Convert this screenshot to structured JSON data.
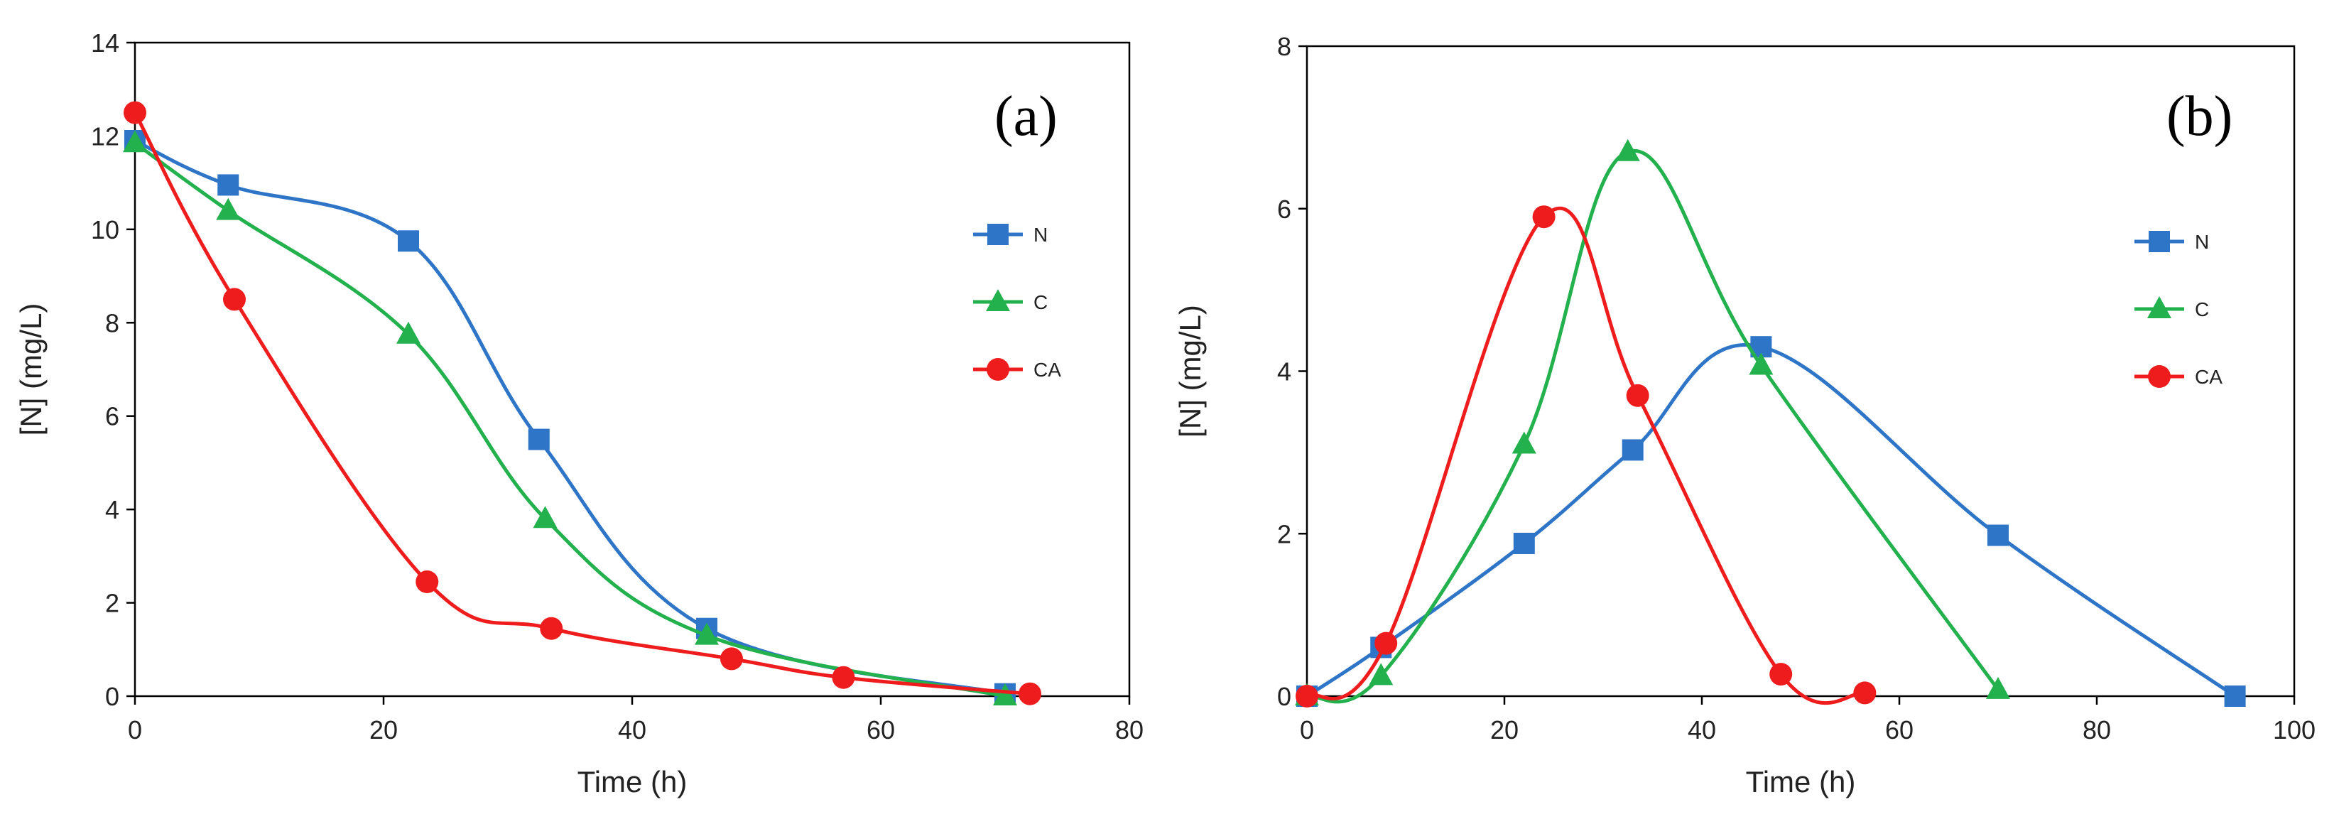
{
  "colors": {
    "N": "#2e75c8",
    "C": "#22b14c",
    "CA": "#ee1c1c"
  },
  "chart_data": [
    {
      "type": "line",
      "panel_label": "(a)",
      "xlabel": "Time (h)",
      "ylabel": "[N] (mg/L)",
      "xlim": [
        0,
        80
      ],
      "ylim": [
        0,
        14
      ],
      "xticks": [
        0,
        20,
        40,
        60,
        80
      ],
      "yticks": [
        0,
        2,
        4,
        6,
        8,
        10,
        12,
        14
      ],
      "legend_position": "right",
      "series": [
        {
          "name": "N",
          "marker": "square",
          "x": [
            0,
            7.5,
            22,
            32.5,
            46,
            70
          ],
          "y": [
            11.9,
            10.95,
            9.75,
            5.5,
            1.45,
            0.05
          ]
        },
        {
          "name": "C",
          "marker": "triangle",
          "x": [
            0,
            7.5,
            22,
            33,
            46,
            70
          ],
          "y": [
            11.85,
            10.4,
            7.75,
            3.8,
            1.3,
            0.0
          ]
        },
        {
          "name": "CA",
          "marker": "circle",
          "x": [
            0,
            8,
            23.5,
            33.5,
            48,
            57,
            72
          ],
          "y": [
            12.5,
            8.5,
            2.45,
            1.45,
            0.8,
            0.4,
            0.05
          ]
        }
      ]
    },
    {
      "type": "line",
      "panel_label": "(b)",
      "xlabel": "Time (h)",
      "ylabel": "[N] (mg/L)",
      "xlim": [
        0,
        100
      ],
      "ylim": [
        0,
        8
      ],
      "xticks": [
        0,
        20,
        40,
        60,
        80,
        100
      ],
      "yticks": [
        0,
        2,
        4,
        6,
        8
      ],
      "legend_position": "right",
      "series": [
        {
          "name": "N",
          "marker": "square",
          "x": [
            0,
            7.5,
            22,
            33,
            46,
            70,
            94
          ],
          "y": [
            0.0,
            0.6,
            1.88,
            3.03,
            4.3,
            1.98,
            0.0
          ]
        },
        {
          "name": "C",
          "marker": "triangle",
          "x": [
            0,
            7.5,
            22,
            32.5,
            46,
            70
          ],
          "y": [
            0.0,
            0.25,
            3.1,
            6.7,
            4.07,
            0.08
          ]
        },
        {
          "name": "CA",
          "marker": "circle",
          "x": [
            0,
            8,
            24,
            33.5,
            48,
            56.5
          ],
          "y": [
            0.0,
            0.65,
            5.9,
            3.7,
            0.27,
            0.04
          ]
        }
      ]
    }
  ]
}
